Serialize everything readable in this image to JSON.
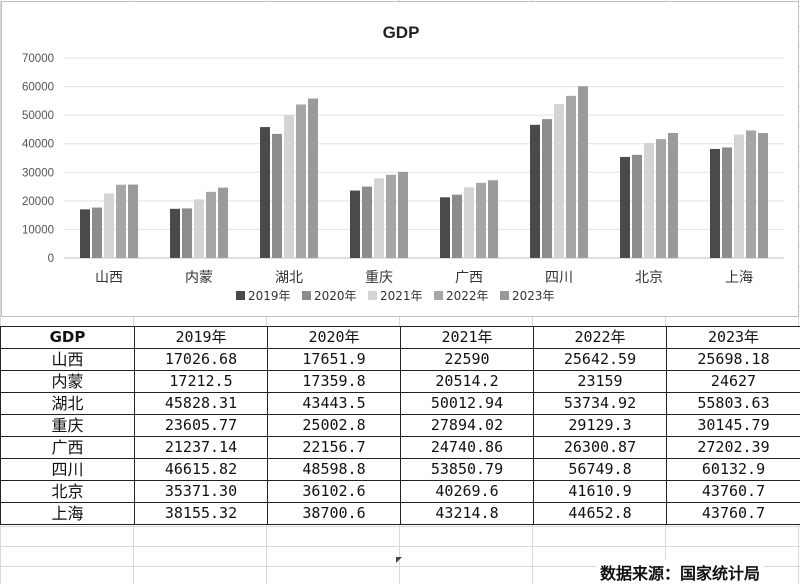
{
  "chart_data": {
    "type": "bar",
    "title": "GDP",
    "categories": [
      "山西",
      "内蒙",
      "湖北",
      "重庆",
      "广西",
      "四川",
      "北京",
      "上海"
    ],
    "series": [
      {
        "name": "2019年",
        "color": "#4a4a4a",
        "values": [
          17026.68,
          17212.5,
          45828.31,
          23605.77,
          21237.14,
          46615.82,
          35371.3,
          38155.32
        ]
      },
      {
        "name": "2020年",
        "color": "#8c8c8c",
        "values": [
          17651.9,
          17359.8,
          43443.5,
          25002.8,
          22156.7,
          48598.8,
          36102.6,
          38700.6
        ]
      },
      {
        "name": "2021年",
        "color": "#d4d4d4",
        "values": [
          22590,
          20514.2,
          50012.94,
          27894.02,
          24740.86,
          53850.79,
          40269.6,
          43214.8
        ]
      },
      {
        "name": "2022年",
        "color": "#a6a6a6",
        "values": [
          25642.59,
          23159,
          53734.92,
          29129.3,
          26300.87,
          56749.8,
          41610.9,
          44652.8
        ]
      },
      {
        "name": "2023年",
        "color": "#9a9a9a",
        "values": [
          25698.18,
          24627,
          55803.63,
          30145.79,
          27202.39,
          60132.9,
          43760.7,
          43760.7
        ]
      }
    ],
    "yticks": [
      "0",
      "10000",
      "20000",
      "30000",
      "40000",
      "50000",
      "60000",
      "70000"
    ],
    "ylim": [
      0,
      70000
    ],
    "grid": true,
    "legend_position": "bottom"
  },
  "table": {
    "corner": "GDP",
    "headers": [
      "2019年",
      "2020年",
      "2021年",
      "2022年",
      "2023年"
    ],
    "rows": [
      {
        "region": "山西",
        "values": [
          "17026.68",
          "17651.9",
          "22590",
          "25642.59",
          "25698.18"
        ]
      },
      {
        "region": "内蒙",
        "values": [
          "17212.5",
          "17359.8",
          "20514.2",
          "23159",
          "24627"
        ]
      },
      {
        "region": "湖北",
        "values": [
          "45828.31",
          "43443.5",
          "50012.94",
          "53734.92",
          "55803.63"
        ]
      },
      {
        "region": "重庆",
        "values": [
          "23605.77",
          "25002.8",
          "27894.02",
          "29129.3",
          "30145.79"
        ]
      },
      {
        "region": "广西",
        "values": [
          "21237.14",
          "22156.7",
          "24740.86",
          "26300.87",
          "27202.39"
        ]
      },
      {
        "region": "四川",
        "values": [
          "46615.82",
          "48598.8",
          "53850.79",
          "56749.8",
          "60132.9"
        ]
      },
      {
        "region": "北京",
        "values": [
          "35371.30",
          "36102.6",
          "40269.6",
          "41610.9",
          "43760.7"
        ]
      },
      {
        "region": "上海",
        "values": [
          "38155.32",
          "38700.6",
          "43214.8",
          "44652.8",
          "43760.7"
        ]
      }
    ]
  },
  "source": "数据来源：国家统计局"
}
